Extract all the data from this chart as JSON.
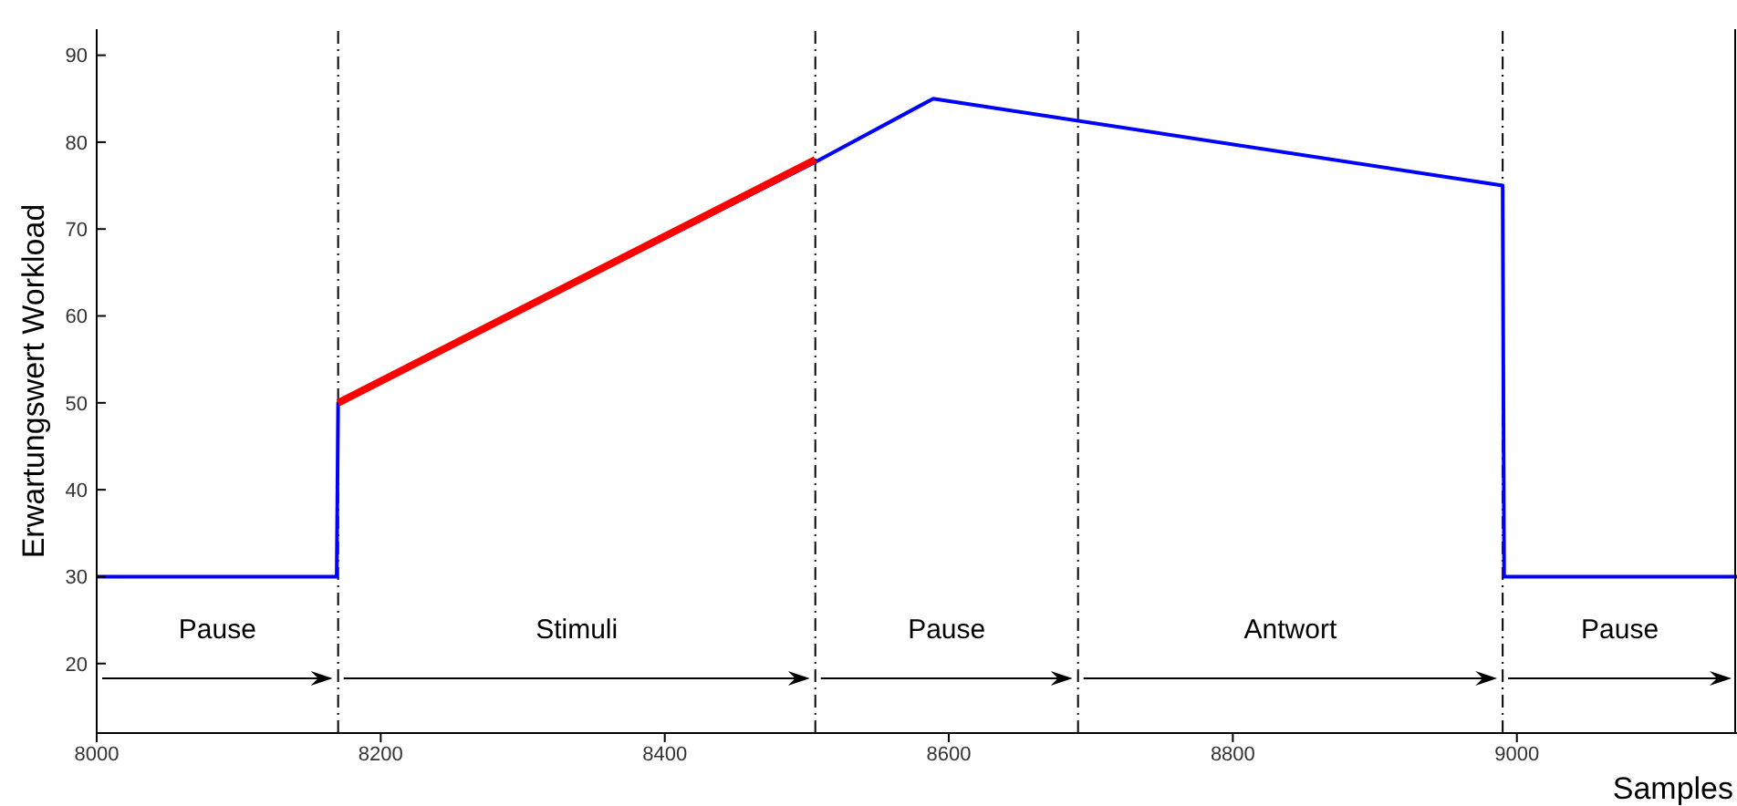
{
  "chart_data": {
    "type": "line",
    "xlabel": "Samples",
    "ylabel": "Erwartungswert Workload",
    "series": [
      {
        "color": "#0000ff",
        "x": [
          8000,
          8169,
          8170,
          8506,
          8589,
          8990,
          8991,
          9155
        ],
        "values": [
          30,
          30,
          50,
          77.7,
          85,
          75,
          30,
          30
        ]
      },
      {
        "color": "#ff0000",
        "x": [
          8170,
          8506
        ],
        "values": [
          50,
          78
        ]
      }
    ],
    "xlim": [
      8000,
      9155
    ],
    "xticks": [
      8000,
      8200,
      8400,
      8600,
      8800,
      9000
    ],
    "ylim": [
      12,
      93
    ],
    "yticks": [
      20,
      30,
      40,
      50,
      60,
      70,
      80,
      90
    ],
    "ref_lines": [
      {
        "axis": "x",
        "value": 8170,
        "line_style": "dashed",
        "color": "#000000"
      },
      {
        "axis": "x",
        "value": 8506,
        "line_style": "dashed",
        "color": "#000000"
      },
      {
        "axis": "x",
        "value": 8691,
        "line_style": "dashed",
        "color": "#000000"
      },
      {
        "axis": "x",
        "value": 8990,
        "line_style": "dashed",
        "color": "#000000"
      }
    ],
    "annotations": [
      "Pause",
      "Stimuli",
      "Pause",
      "Antwort",
      "Pause"
    ],
    "grid": false,
    "legend": false,
    "marker": "none",
    "line_style": "solid"
  }
}
